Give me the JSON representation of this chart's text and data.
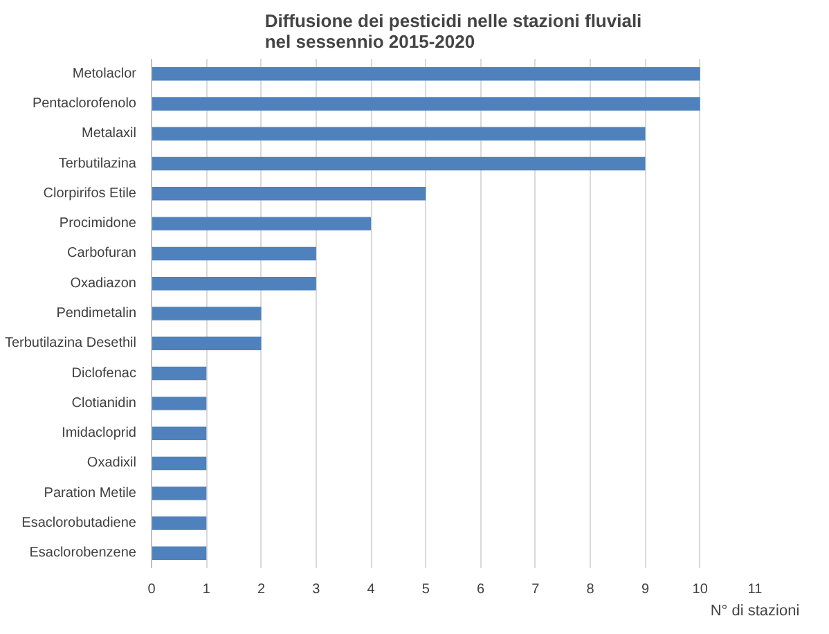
{
  "chart_data": {
    "type": "bar",
    "orientation": "horizontal",
    "title": "Diffusione dei pesticidi nelle stazioni fluviali\nnel sessennio 2015-2020",
    "xlabel": "N° di stazioni",
    "categories": [
      "Metolaclor",
      "Pentaclorofenolo",
      "Metalaxil",
      "Terbutilazina",
      "Clorpirifos Etile",
      "Procimidone",
      "Carbofuran",
      "Oxadiazon",
      "Pendimetalin",
      "Terbutilazina Desethil",
      "Diclofenac",
      "Clotianidin",
      "Imidacloprid",
      "Oxadixil",
      "Paration Metile",
      "Esaclorobutadiene",
      "Esaclorobenzene"
    ],
    "values": [
      10,
      10,
      9,
      9,
      5,
      4,
      3,
      3,
      2,
      2,
      1,
      1,
      1,
      1,
      1,
      1,
      1
    ],
    "color": "#4f81bd",
    "xlim": [
      0,
      11
    ],
    "xticks": [
      0,
      1,
      2,
      3,
      4,
      5,
      6,
      7,
      8,
      9,
      10,
      11
    ],
    "grid": "x"
  }
}
